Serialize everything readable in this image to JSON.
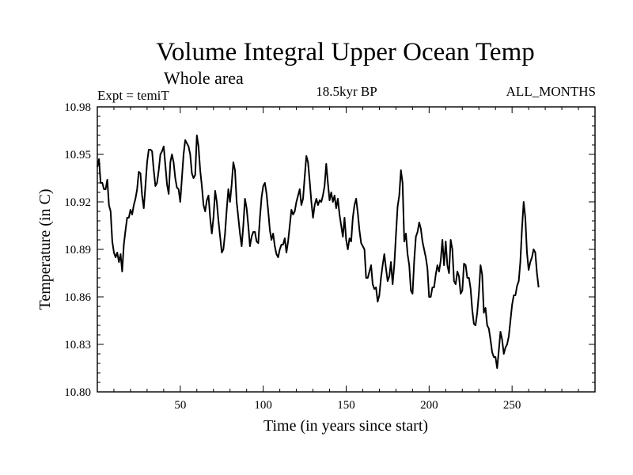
{
  "title": "Volume Integral Upper Ocean Temp",
  "subtitle": "Whole area",
  "experiment_label": "Expt = temiT",
  "period_label": "18.5kyr BP",
  "months_label": "ALL_MONTHS",
  "chart_data": {
    "type": "line",
    "title": "Volume Integral Upper Ocean Temp",
    "xlabel": "Time (in years since start)",
    "ylabel": "Temperature (in C)",
    "xlim": [
      0,
      300
    ],
    "ylim": [
      10.8,
      10.98
    ],
    "x_ticks": [
      50,
      100,
      150,
      200,
      250
    ],
    "y_ticks": [
      "10.80",
      "10.83",
      "10.86",
      "10.89",
      "10.92",
      "10.95",
      "10.98"
    ],
    "grid": false,
    "series": [
      {
        "name": "temiT",
        "color": "#000000",
        "points": [
          [
            0,
            10.942
          ],
          [
            1,
            10.947
          ],
          [
            2,
            10.932
          ],
          [
            3,
            10.932
          ],
          [
            4,
            10.928
          ],
          [
            5,
            10.928
          ],
          [
            6,
            10.934
          ],
          [
            7,
            10.918
          ],
          [
            8,
            10.914
          ],
          [
            9,
            10.895
          ],
          [
            10,
            10.888
          ],
          [
            11,
            10.885
          ],
          [
            12,
            10.888
          ],
          [
            13,
            10.882
          ],
          [
            14,
            10.887
          ],
          [
            15,
            10.876
          ],
          [
            16,
            10.893
          ],
          [
            17,
            10.902
          ],
          [
            18,
            10.91
          ],
          [
            19,
            10.91
          ],
          [
            20,
            10.915
          ],
          [
            21,
            10.912
          ],
          [
            22,
            10.918
          ],
          [
            23,
            10.922
          ],
          [
            24,
            10.928
          ],
          [
            25,
            10.939
          ],
          [
            26,
            10.938
          ],
          [
            27,
            10.924
          ],
          [
            28,
            10.916
          ],
          [
            29,
            10.93
          ],
          [
            30,
            10.945
          ],
          [
            31,
            10.953
          ],
          [
            32,
            10.953
          ],
          [
            33,
            10.952
          ],
          [
            34,
            10.94
          ],
          [
            35,
            10.93
          ],
          [
            36,
            10.932
          ],
          [
            37,
            10.94
          ],
          [
            38,
            10.95
          ],
          [
            39,
            10.952
          ],
          [
            40,
            10.955
          ],
          [
            41,
            10.943
          ],
          [
            42,
            10.931
          ],
          [
            43,
            10.925
          ],
          [
            44,
            10.945
          ],
          [
            45,
            10.95
          ],
          [
            46,
            10.945
          ],
          [
            47,
            10.935
          ],
          [
            48,
            10.929
          ],
          [
            49,
            10.928
          ],
          [
            50,
            10.92
          ],
          [
            51,
            10.935
          ],
          [
            52,
            10.95
          ],
          [
            53,
            10.959
          ],
          [
            54,
            10.957
          ],
          [
            55,
            10.955
          ],
          [
            56,
            10.95
          ],
          [
            57,
            10.938
          ],
          [
            58,
            10.935
          ],
          [
            59,
            10.937
          ],
          [
            60,
            10.962
          ],
          [
            61,
            10.955
          ],
          [
            62,
            10.94
          ],
          [
            63,
            10.93
          ],
          [
            64,
            10.918
          ],
          [
            65,
            10.914
          ],
          [
            66,
            10.921
          ],
          [
            67,
            10.924
          ],
          [
            68,
            10.91
          ],
          [
            69,
            10.9
          ],
          [
            70,
            10.91
          ],
          [
            71,
            10.927
          ],
          [
            72,
            10.92
          ],
          [
            73,
            10.908
          ],
          [
            74,
            10.898
          ],
          [
            75,
            10.888
          ],
          [
            76,
            10.89
          ],
          [
            77,
            10.9
          ],
          [
            78,
            10.915
          ],
          [
            79,
            10.928
          ],
          [
            80,
            10.92
          ],
          [
            81,
            10.931
          ],
          [
            82,
            10.945
          ],
          [
            83,
            10.94
          ],
          [
            84,
            10.92
          ],
          [
            85,
            10.91
          ],
          [
            86,
            10.9
          ],
          [
            87,
            10.892
          ],
          [
            88,
            10.905
          ],
          [
            89,
            10.922
          ],
          [
            90,
            10.916
          ],
          [
            91,
            10.905
          ],
          [
            92,
            10.892
          ],
          [
            93,
            10.898
          ],
          [
            94,
            10.901
          ],
          [
            95,
            10.901
          ],
          [
            96,
            10.895
          ],
          [
            97,
            10.894
          ],
          [
            98,
            10.91
          ],
          [
            99,
            10.923
          ],
          [
            100,
            10.93
          ],
          [
            101,
            10.932
          ],
          [
            102,
            10.925
          ],
          [
            103,
            10.914
          ],
          [
            104,
            10.902
          ],
          [
            105,
            10.896
          ],
          [
            106,
            10.9
          ],
          [
            107,
            10.892
          ],
          [
            108,
            10.887
          ],
          [
            109,
            10.885
          ],
          [
            110,
            10.89
          ],
          [
            111,
            10.893
          ],
          [
            112,
            10.893
          ],
          [
            113,
            10.897
          ],
          [
            114,
            10.888
          ],
          [
            115,
            10.895
          ],
          [
            116,
            10.905
          ],
          [
            117,
            10.915
          ],
          [
            118,
            10.912
          ],
          [
            119,
            10.914
          ],
          [
            120,
            10.92
          ],
          [
            121,
            10.924
          ],
          [
            122,
            10.928
          ],
          [
            123,
            10.918
          ],
          [
            124,
            10.922
          ],
          [
            125,
            10.936
          ],
          [
            126,
            10.949
          ],
          [
            127,
            10.945
          ],
          [
            128,
            10.933
          ],
          [
            129,
            10.92
          ],
          [
            130,
            10.91
          ],
          [
            131,
            10.918
          ],
          [
            132,
            10.922
          ],
          [
            133,
            10.918
          ],
          [
            134,
            10.921
          ],
          [
            135,
            10.92
          ],
          [
            136,
            10.924
          ],
          [
            137,
            10.93
          ],
          [
            138,
            10.944
          ],
          [
            139,
            10.932
          ],
          [
            140,
            10.921
          ],
          [
            141,
            10.926
          ],
          [
            142,
            10.92
          ],
          [
            143,
            10.924
          ],
          [
            144,
            10.916
          ],
          [
            145,
            10.922
          ],
          [
            146,
            10.912
          ],
          [
            147,
            10.905
          ],
          [
            148,
            10.898
          ],
          [
            149,
            10.91
          ],
          [
            150,
            10.896
          ],
          [
            151,
            10.89
          ],
          [
            152,
            10.897
          ],
          [
            153,
            10.895
          ],
          [
            154,
            10.91
          ],
          [
            155,
            10.918
          ],
          [
            156,
            10.922
          ],
          [
            157,
            10.913
          ],
          [
            158,
            10.902
          ],
          [
            159,
            10.894
          ],
          [
            160,
            10.892
          ],
          [
            161,
            10.89
          ],
          [
            162,
            10.872
          ],
          [
            163,
            10.872
          ],
          [
            164,
            10.876
          ],
          [
            165,
            10.88
          ],
          [
            166,
            10.868
          ],
          [
            167,
            10.865
          ],
          [
            168,
            10.866
          ],
          [
            169,
            10.857
          ],
          [
            170,
            10.861
          ],
          [
            171,
            10.872
          ],
          [
            172,
            10.88
          ],
          [
            173,
            10.887
          ],
          [
            174,
            10.878
          ],
          [
            175,
            10.87
          ],
          [
            176,
            10.873
          ],
          [
            177,
            10.882
          ],
          [
            178,
            10.868
          ],
          [
            179,
            10.88
          ],
          [
            180,
            10.899
          ],
          [
            181,
            10.917
          ],
          [
            182,
            10.924
          ],
          [
            183,
            10.94
          ],
          [
            184,
            10.932
          ],
          [
            185,
            10.895
          ],
          [
            186,
            10.9
          ],
          [
            187,
            10.887
          ],
          [
            188,
            10.88
          ],
          [
            189,
            10.864
          ],
          [
            190,
            10.862
          ],
          [
            191,
            10.883
          ],
          [
            192,
            10.898
          ],
          [
            193,
            10.901
          ],
          [
            194,
            10.907
          ],
          [
            195,
            10.903
          ],
          [
            196,
            10.895
          ],
          [
            197,
            10.89
          ],
          [
            198,
            10.885
          ],
          [
            199,
            10.878
          ],
          [
            200,
            10.86
          ],
          [
            201,
            10.86
          ],
          [
            202,
            10.866
          ],
          [
            203,
            10.866
          ],
          [
            204,
            10.874
          ],
          [
            205,
            10.88
          ],
          [
            206,
            10.876
          ],
          [
            207,
            10.883
          ],
          [
            208,
            10.896
          ],
          [
            209,
            10.88
          ],
          [
            210,
            10.895
          ],
          [
            211,
            10.88
          ],
          [
            212,
            10.875
          ],
          [
            213,
            10.896
          ],
          [
            214,
            10.89
          ],
          [
            215,
            10.87
          ],
          [
            216,
            10.868
          ],
          [
            217,
            10.876
          ],
          [
            218,
            10.873
          ],
          [
            219,
            10.862
          ],
          [
            220,
            10.864
          ],
          [
            221,
            10.881
          ],
          [
            222,
            10.88
          ],
          [
            223,
            10.872
          ],
          [
            224,
            10.872
          ],
          [
            225,
            10.865
          ],
          [
            226,
            10.852
          ],
          [
            227,
            10.843
          ],
          [
            228,
            10.842
          ],
          [
            229,
            10.85
          ],
          [
            230,
            10.862
          ],
          [
            231,
            10.88
          ],
          [
            232,
            10.874
          ],
          [
            233,
            10.85
          ],
          [
            234,
            10.853
          ],
          [
            235,
            10.842
          ],
          [
            236,
            10.84
          ],
          [
            237,
            10.833
          ],
          [
            238,
            10.825
          ],
          [
            239,
            10.822
          ],
          [
            240,
            10.822
          ],
          [
            241,
            10.815
          ],
          [
            242,
            10.826
          ],
          [
            243,
            10.838
          ],
          [
            244,
            10.833
          ],
          [
            245,
            10.824
          ],
          [
            246,
            10.828
          ],
          [
            247,
            10.83
          ],
          [
            248,
            10.835
          ],
          [
            249,
            10.845
          ],
          [
            250,
            10.855
          ],
          [
            251,
            10.861
          ],
          [
            252,
            10.861
          ],
          [
            253,
            10.867
          ],
          [
            254,
            10.87
          ],
          [
            255,
            10.882
          ],
          [
            256,
            10.903
          ],
          [
            257,
            10.92
          ],
          [
            258,
            10.91
          ],
          [
            259,
            10.888
          ],
          [
            260,
            10.877
          ],
          [
            261,
            10.882
          ],
          [
            262,
            10.885
          ],
          [
            263,
            10.89
          ],
          [
            264,
            10.888
          ],
          [
            265,
            10.875
          ],
          [
            266,
            10.866
          ]
        ]
      }
    ]
  }
}
